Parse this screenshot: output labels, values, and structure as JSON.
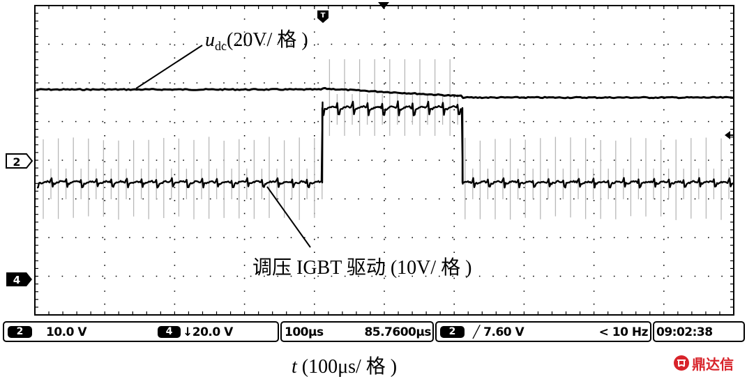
{
  "chart_data": {
    "type": "line",
    "title": "",
    "grid": true,
    "xlabel_var": "t",
    "xlabel_rest": " (100μs/ 格 )",
    "x_divisions": 10,
    "y_divisions": 8,
    "series": [
      {
        "name": "u",
        "name_sub": "dc",
        "name_rest": "(20V/ 格 )",
        "description": "DC bus voltage, nearly constant with a slight dip after the drive switches high"
      },
      {
        "name": "调压 IGBT 驱动 (10V/ 格 )",
        "description": "Voltage-regulation IGBT drive signal, stepped high between about 4.1 and 6.1 divisions"
      }
    ],
    "channel_markers": [
      "2",
      "4"
    ],
    "trigger_marker": "T"
  },
  "status_bar": {
    "ch2_badge": "2",
    "ch2_scale": "10.0 V",
    "ch4_badge": "4",
    "ch4_scale": "↓20.0 V",
    "timebase": "100µs",
    "trigger_pos": "85.7600µs",
    "trig_badge": "2",
    "trig_level": "╱ 7.60 V",
    "frequency": "< 10 Hz",
    "time": "09:02:38"
  },
  "logo": {
    "text": "鼎达信"
  }
}
